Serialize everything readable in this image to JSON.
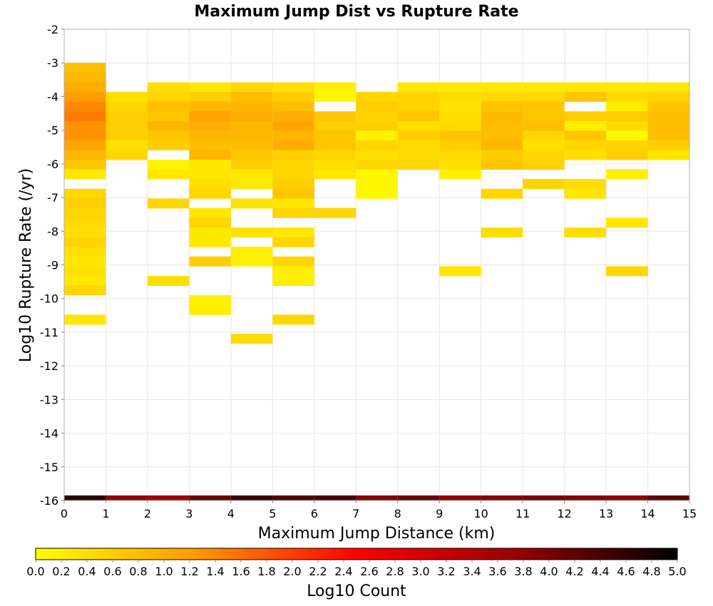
{
  "chart_data": {
    "type": "heatmap",
    "title": "Maximum Jump Dist vs Rupture Rate",
    "xlabel": "Maximum Jump Distance (km)",
    "ylabel": "Log10 Rupture Rate (/yr)",
    "xlim": [
      0,
      15
    ],
    "ylim": [
      -16,
      -2
    ],
    "x_ticks": [
      "0",
      "1",
      "2",
      "3",
      "4",
      "5",
      "6",
      "7",
      "8",
      "9",
      "10",
      "11",
      "12",
      "13",
      "14",
      "15"
    ],
    "y_ticks": [
      "-2",
      "-3",
      "-4",
      "-5",
      "-6",
      "-7",
      "-8",
      "-9",
      "-10",
      "-11",
      "-12",
      "-13",
      "-14",
      "-15",
      "-16"
    ],
    "grid": true,
    "x_bin_width": 1,
    "y_bin_height": 0.2875,
    "colorbar": {
      "label": "Log10 Count",
      "range": [
        0.0,
        5.0
      ],
      "ticks": [
        "0.0",
        "0.2",
        "0.4",
        "0.6",
        "0.8",
        "1.0",
        "1.2",
        "1.4",
        "1.6",
        "1.8",
        "2.0",
        "2.2",
        "2.4",
        "2.6",
        "2.8",
        "3.0",
        "3.2",
        "3.4",
        "3.6",
        "3.8",
        "4.0",
        "4.2",
        "4.4",
        "4.6",
        "4.8",
        "5.0"
      ],
      "colors": [
        "#ffff00",
        "#ff9900",
        "#ff0000",
        "#990000",
        "#000000"
      ]
    },
    "columns": [
      {
        "x": 0,
        "cells": [
          [
            -3.0,
            0.8
          ],
          [
            -3.29,
            0.9
          ],
          [
            -3.58,
            1.0
          ],
          [
            -3.86,
            1.2
          ],
          [
            -4.15,
            1.4
          ],
          [
            -4.44,
            1.5
          ],
          [
            -4.73,
            1.3
          ],
          [
            -5.01,
            1.3
          ],
          [
            -5.3,
            1.1
          ],
          [
            -5.59,
            0.9
          ],
          [
            -5.88,
            0.7
          ],
          [
            -6.16,
            0.3
          ],
          [
            -6.74,
            0.5
          ],
          [
            -7.03,
            0.6
          ],
          [
            -7.31,
            0.5
          ],
          [
            -7.6,
            0.45
          ],
          [
            -7.89,
            0.4
          ],
          [
            -8.18,
            0.55
          ],
          [
            -8.46,
            0.4
          ],
          [
            -8.75,
            0.3
          ],
          [
            -9.04,
            0.35
          ],
          [
            -9.33,
            0.3
          ],
          [
            -9.61,
            0.5
          ],
          [
            -10.48,
            0.3
          ]
        ]
      },
      {
        "x": 1,
        "cells": [
          [
            -3.86,
            0.4
          ],
          [
            -4.15,
            0.5
          ],
          [
            -4.44,
            0.6
          ],
          [
            -4.73,
            0.6
          ],
          [
            -5.01,
            0.6
          ],
          [
            -5.3,
            0.4
          ],
          [
            -5.59,
            0.5
          ]
        ]
      },
      {
        "x": 2,
        "cells": [
          [
            -3.58,
            0.4
          ],
          [
            -3.86,
            0.5
          ],
          [
            -4.15,
            0.8
          ],
          [
            -4.44,
            0.7
          ],
          [
            -4.73,
            0.9
          ],
          [
            -5.01,
            0.7
          ],
          [
            -5.3,
            0.6
          ],
          [
            -5.88,
            0.15
          ],
          [
            -6.16,
            0.3
          ],
          [
            -7.03,
            0.5
          ],
          [
            -9.33,
            0.4
          ]
        ]
      },
      {
        "x": 3,
        "cells": [
          [
            -3.58,
            0.3
          ],
          [
            -3.86,
            0.6
          ],
          [
            -4.15,
            0.9
          ],
          [
            -4.44,
            1.1
          ],
          [
            -4.73,
            1.0
          ],
          [
            -5.01,
            0.9
          ],
          [
            -5.3,
            0.8
          ],
          [
            -5.59,
            0.9
          ],
          [
            -5.88,
            0.3
          ],
          [
            -6.16,
            0.3
          ],
          [
            -6.45,
            0.4
          ],
          [
            -6.74,
            0.5
          ],
          [
            -7.31,
            0.3
          ],
          [
            -7.6,
            0.5
          ],
          [
            -7.89,
            0.3
          ],
          [
            -8.18,
            0.3
          ],
          [
            -8.75,
            0.6
          ],
          [
            -9.9,
            0.2
          ],
          [
            -10.19,
            0.2
          ]
        ]
      },
      {
        "x": 4,
        "cells": [
          [
            -3.58,
            0.5
          ],
          [
            -3.86,
            0.8
          ],
          [
            -4.15,
            0.9
          ],
          [
            -4.44,
            1.0
          ],
          [
            -4.73,
            0.9
          ],
          [
            -5.01,
            0.9
          ],
          [
            -5.3,
            0.8
          ],
          [
            -5.59,
            0.7
          ],
          [
            -5.88,
            0.6
          ],
          [
            -6.16,
            0.3
          ],
          [
            -6.45,
            0.3
          ],
          [
            -7.03,
            0.35
          ],
          [
            -7.89,
            0.35
          ],
          [
            -8.46,
            0.2
          ],
          [
            -8.75,
            0.2
          ],
          [
            -11.05,
            0.45
          ]
        ]
      },
      {
        "x": 5,
        "cells": [
          [
            -3.58,
            0.4
          ],
          [
            -3.86,
            0.6
          ],
          [
            -4.15,
            0.8
          ],
          [
            -4.44,
            1.0
          ],
          [
            -4.73,
            1.1
          ],
          [
            -5.01,
            0.9
          ],
          [
            -5.3,
            1.0
          ],
          [
            -5.59,
            0.6
          ],
          [
            -5.88,
            0.5
          ],
          [
            -6.16,
            0.5
          ],
          [
            -6.45,
            0.6
          ],
          [
            -6.74,
            0.7
          ],
          [
            -7.03,
            0.3
          ],
          [
            -7.31,
            0.5
          ],
          [
            -7.89,
            0.3
          ],
          [
            -8.18,
            0.5
          ],
          [
            -8.75,
            0.5
          ],
          [
            -9.04,
            0.2
          ],
          [
            -9.33,
            0.2
          ],
          [
            -10.48,
            0.5
          ]
        ]
      },
      {
        "x": 6,
        "cells": [
          [
            -3.58,
            0.2
          ],
          [
            -3.86,
            0.1
          ],
          [
            -4.44,
            0.7
          ],
          [
            -4.73,
            0.6
          ],
          [
            -5.01,
            0.7
          ],
          [
            -5.3,
            0.7
          ],
          [
            -5.59,
            0.5
          ],
          [
            -5.88,
            0.4
          ],
          [
            -6.16,
            0.3
          ],
          [
            -7.31,
            0.5
          ]
        ]
      },
      {
        "x": 7,
        "cells": [
          [
            -3.86,
            0.5
          ],
          [
            -4.15,
            0.6
          ],
          [
            -4.44,
            0.55
          ],
          [
            -4.73,
            0.6
          ],
          [
            -5.01,
            0.2
          ],
          [
            -5.3,
            0.5
          ],
          [
            -5.59,
            0.4
          ],
          [
            -5.88,
            0.5
          ],
          [
            -6.16,
            0.1
          ],
          [
            -6.45,
            0.1
          ],
          [
            -6.74,
            0.1
          ]
        ]
      },
      {
        "x": 8,
        "cells": [
          [
            -3.58,
            0.3
          ],
          [
            -3.86,
            0.55
          ],
          [
            -4.15,
            0.55
          ],
          [
            -4.44,
            0.7
          ],
          [
            -4.73,
            0.4
          ],
          [
            -5.01,
            0.6
          ],
          [
            -5.3,
            0.45
          ],
          [
            -5.59,
            0.45
          ],
          [
            -5.88,
            0.5
          ]
        ]
      },
      {
        "x": 9,
        "cells": [
          [
            -3.58,
            0.3
          ],
          [
            -3.86,
            0.4
          ],
          [
            -4.15,
            0.35
          ],
          [
            -4.44,
            0.4
          ],
          [
            -4.73,
            0.45
          ],
          [
            -5.01,
            0.7
          ],
          [
            -5.3,
            0.6
          ],
          [
            -5.59,
            0.45
          ],
          [
            -5.88,
            0.4
          ],
          [
            -6.16,
            0.2
          ],
          [
            -9.04,
            0.3
          ]
        ]
      },
      {
        "x": 10,
        "cells": [
          [
            -3.58,
            0.3
          ],
          [
            -3.86,
            0.45
          ],
          [
            -4.15,
            0.75
          ],
          [
            -4.44,
            0.85
          ],
          [
            -4.73,
            0.8
          ],
          [
            -5.01,
            0.8
          ],
          [
            -5.3,
            0.9
          ],
          [
            -5.59,
            0.6
          ],
          [
            -5.88,
            0.7
          ],
          [
            -6.74,
            0.5
          ],
          [
            -7.89,
            0.4
          ]
        ]
      },
      {
        "x": 11,
        "cells": [
          [
            -3.58,
            0.3
          ],
          [
            -3.86,
            0.45
          ],
          [
            -4.15,
            0.7
          ],
          [
            -4.44,
            0.7
          ],
          [
            -4.73,
            0.8
          ],
          [
            -5.01,
            0.5
          ],
          [
            -5.3,
            0.4
          ],
          [
            -5.59,
            0.5
          ],
          [
            -5.88,
            0.55
          ],
          [
            -6.45,
            0.5
          ]
        ]
      },
      {
        "x": 12,
        "cells": [
          [
            -3.58,
            0.3
          ],
          [
            -3.86,
            0.7
          ],
          [
            -4.44,
            0.6
          ],
          [
            -4.73,
            0.2
          ],
          [
            -5.01,
            0.7
          ],
          [
            -5.3,
            0.5
          ],
          [
            -5.59,
            0.4
          ],
          [
            -6.45,
            0.4
          ],
          [
            -6.74,
            0.3
          ],
          [
            -7.89,
            0.4
          ]
        ]
      },
      {
        "x": 13,
        "cells": [
          [
            -3.58,
            0.3
          ],
          [
            -3.86,
            0.45
          ],
          [
            -4.15,
            0.25
          ],
          [
            -4.44,
            0.6
          ],
          [
            -4.73,
            0.45
          ],
          [
            -5.01,
            0.1
          ],
          [
            -5.3,
            0.55
          ],
          [
            -5.59,
            0.6
          ],
          [
            -6.16,
            0.2
          ],
          [
            -7.6,
            0.3
          ],
          [
            -9.04,
            0.5
          ]
        ]
      },
      {
        "x": 14,
        "cells": [
          [
            -3.58,
            0.3
          ],
          [
            -3.86,
            0.55
          ],
          [
            -4.15,
            0.7
          ],
          [
            -4.44,
            0.8
          ],
          [
            -4.73,
            0.8
          ],
          [
            -5.01,
            0.8
          ],
          [
            -5.3,
            0.6
          ],
          [
            -5.59,
            0.3
          ]
        ]
      }
    ],
    "bottom_band": {
      "y": -16.0,
      "values": [
        4.6,
        3.8,
        3.7,
        4.1,
        4.5,
        4.3,
        4.4,
        3.9,
        4.1,
        3.8,
        3.9,
        4.0,
        3.9,
        3.8,
        4.2
      ]
    }
  }
}
